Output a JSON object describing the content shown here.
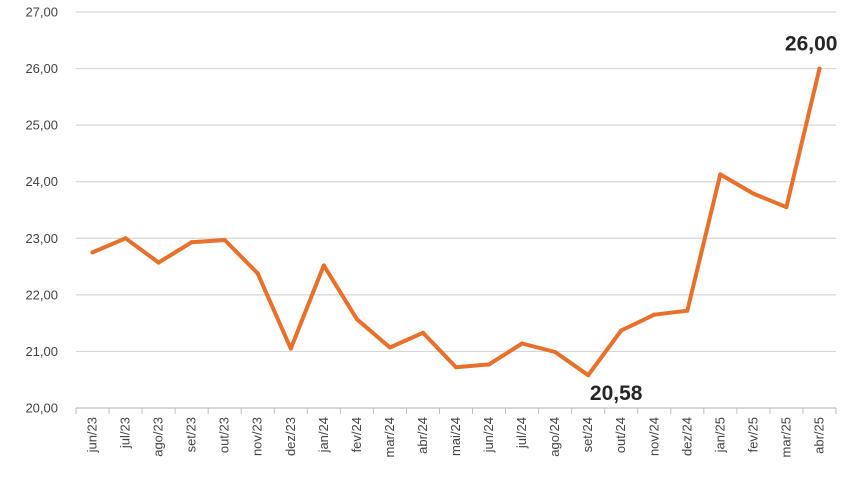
{
  "chart_data": {
    "type": "line",
    "title": "",
    "xlabel": "",
    "ylabel": "",
    "ylim": [
      20,
      27
    ],
    "ytick_values": [
      20,
      21,
      22,
      23,
      24,
      25,
      26,
      27
    ],
    "ytick_labels": [
      "20,00",
      "21,00",
      "22,00",
      "23,00",
      "24,00",
      "25,00",
      "26,00",
      "27,00"
    ],
    "grid": "horizontal",
    "legend": "none",
    "line_color": "#E8702A",
    "categories": [
      "jun/23",
      "jul/23",
      "ago/23",
      "set/23",
      "out/23",
      "nov/23",
      "dez/23",
      "jan/24",
      "fev/24",
      "mar/24",
      "abr/24",
      "mai/24",
      "jun/24",
      "jul/24",
      "ago/24",
      "set/24",
      "out/24",
      "nov/24",
      "dez/24",
      "jan/25",
      "fev/25",
      "mar/25",
      "abr/25"
    ],
    "values": [
      22.75,
      23.0,
      22.57,
      22.93,
      22.97,
      22.38,
      21.05,
      22.52,
      21.57,
      21.07,
      21.33,
      20.72,
      20.77,
      21.14,
      20.99,
      20.58,
      21.37,
      21.65,
      21.72,
      24.13,
      23.79,
      23.55,
      26.0
    ],
    "data_labels": [
      {
        "index": 15,
        "text": "20,58",
        "position": "below"
      },
      {
        "index": 22,
        "text": "26,00",
        "position": "above"
      }
    ]
  }
}
